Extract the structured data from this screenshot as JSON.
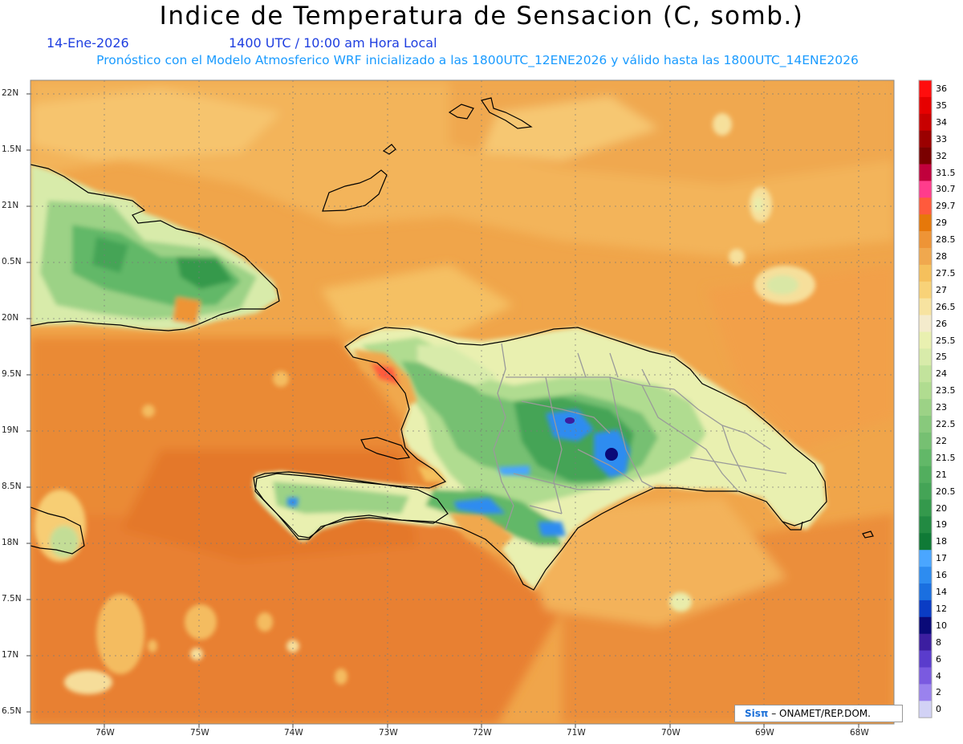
{
  "title": "Indice de Temperatura de Sensacion (C, somb.)",
  "date": "14-Ene-2026",
  "valid_time": "1400 UTC / 10:00 am Hora Local",
  "model_info": "Pronóstico con el Modelo Atmosferico WRF inicializado a las 1800UTC_12ENE2026 y válido hasta las  1800UTC_14ENE2026",
  "lat_labels": [
    "22N",
    "1.5N",
    "21N",
    "0.5N",
    "20N",
    "9.5N",
    "19N",
    "8.5N",
    "18N",
    "7.5N",
    "17N",
    "6.5N"
  ],
  "lon_labels": [
    "76W",
    "75W",
    "74W",
    "73W",
    "72W",
    "71W",
    "70W",
    "69W",
    "68W"
  ],
  "colorbar": {
    "labels": [
      "36",
      "35",
      "34",
      "33",
      "32",
      "31.5",
      "30.7",
      "29.7",
      "29",
      "28.5",
      "28",
      "27.5",
      "27",
      "26.5",
      "26",
      "25.5",
      "25",
      "24",
      "23.5",
      "23",
      "22.5",
      "22",
      "21.5",
      "21",
      "20.5",
      "20",
      "19",
      "18",
      "17",
      "16",
      "14",
      "12",
      "10",
      "8",
      "6",
      "4",
      "2",
      "0"
    ],
    "colors": [
      "#ff0d0d",
      "#e60000",
      "#c80000",
      "#9b0000",
      "#7a0000",
      "#c0003c",
      "#ff3c8c",
      "#ff5a3c",
      "#e6780a",
      "#ee9436",
      "#f0a84e",
      "#f5c05c",
      "#f8d278",
      "#f7e3a0",
      "#f4ebcc",
      "#e9f0b0",
      "#d8ebaa",
      "#c2e39c",
      "#b0dc90",
      "#9cd286",
      "#88c97c",
      "#76c072",
      "#62b868",
      "#52ae5e",
      "#44a456",
      "#34994c",
      "#228a42",
      "#0f7a36",
      "#4aa6ff",
      "#2d8cf0",
      "#1a6fe0",
      "#0a3cc4",
      "#0a0a78",
      "#3c1ea0",
      "#5a3ccc",
      "#7a5ae0",
      "#9a82ee",
      "#d2d2f5"
    ]
  },
  "credit": {
    "logo": "Sisπ",
    "text": "– ONAMET/REP.DOM."
  }
}
